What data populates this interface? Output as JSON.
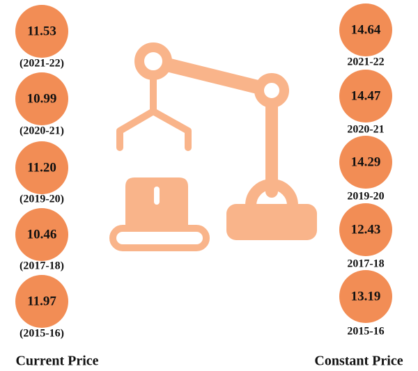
{
  "current_price": {
    "label": "Current Price",
    "items": [
      {
        "value": "11.53",
        "period": "(2021-22)"
      },
      {
        "value": "10.99",
        "period": "(2020-21)"
      },
      {
        "value": "11.20",
        "period": "(2019-20)"
      },
      {
        "value": "10.46",
        "period": "(2017-18)"
      },
      {
        "value": "11.97",
        "period": "(2015-16)"
      }
    ]
  },
  "constant_price": {
    "label": "Constant Price",
    "items": [
      {
        "value": "14.64",
        "period": "2021-22"
      },
      {
        "value": "14.47",
        "period": "2020-21"
      },
      {
        "value": "14.29",
        "period": "2019-20"
      },
      {
        "value": "12.43",
        "period": "2017-18"
      },
      {
        "value": "13.19",
        "period": "2015-16"
      }
    ]
  }
}
